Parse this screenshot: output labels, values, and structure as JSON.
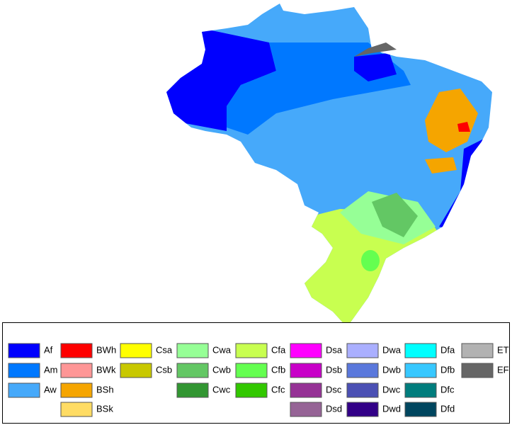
{
  "legend": {
    "columns": [
      {
        "items": [
          {
            "label": "Af",
            "color": "#0000fe"
          },
          {
            "label": "Am",
            "color": "#0078ff"
          },
          {
            "label": "Aw",
            "color": "#46a9fa"
          }
        ]
      },
      {
        "items": [
          {
            "label": "BWh",
            "color": "#fe0000"
          },
          {
            "label": "BWk",
            "color": "#fe9696"
          },
          {
            "label": "BSh",
            "color": "#f5a500"
          },
          {
            "label": "BSk",
            "color": "#ffdc64"
          }
        ]
      },
      {
        "items": [
          {
            "label": "Csa",
            "color": "#ffff00"
          },
          {
            "label": "Csb",
            "color": "#c8c800"
          }
        ]
      },
      {
        "items": [
          {
            "label": "Cwa",
            "color": "#96ff96"
          },
          {
            "label": "Cwb",
            "color": "#63c764"
          },
          {
            "label": "Cwc",
            "color": "#329632"
          }
        ]
      },
      {
        "items": [
          {
            "label": "Cfa",
            "color": "#c8ff50"
          },
          {
            "label": "Cfb",
            "color": "#64ff50"
          },
          {
            "label": "Cfc",
            "color": "#32c800"
          }
        ]
      },
      {
        "items": [
          {
            "label": "Dsa",
            "color": "#ff00ff"
          },
          {
            "label": "Dsb",
            "color": "#c800c8"
          },
          {
            "label": "Dsc",
            "color": "#963296"
          },
          {
            "label": "Dsd",
            "color": "#966496"
          }
        ]
      },
      {
        "items": [
          {
            "label": "Dwa",
            "color": "#aaafff"
          },
          {
            "label": "Dwb",
            "color": "#5a78dc"
          },
          {
            "label": "Dwc",
            "color": "#4b50b4"
          },
          {
            "label": "Dwd",
            "color": "#320087"
          }
        ]
      },
      {
        "items": [
          {
            "label": "Dfa",
            "color": "#00ffff"
          },
          {
            "label": "Dfb",
            "color": "#37c8ff"
          },
          {
            "label": "Dfc",
            "color": "#007d7d"
          },
          {
            "label": "Dfd",
            "color": "#00465f"
          }
        ]
      },
      {
        "items": [
          {
            "label": "ET",
            "color": "#b2b2b2"
          },
          {
            "label": "EF",
            "color": "#666666"
          }
        ]
      }
    ]
  }
}
